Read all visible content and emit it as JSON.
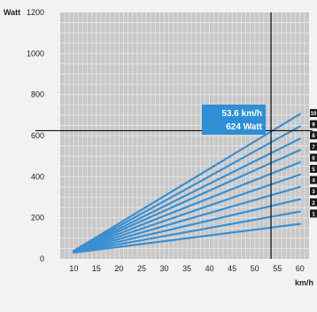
{
  "chart_data": {
    "type": "line",
    "title": "",
    "ylabel": "Watt",
    "xlabel": "km/h",
    "xlim": [
      7,
      62
    ],
    "ylim": [
      0,
      1200
    ],
    "x_ticks": [
      10,
      15,
      20,
      25,
      30,
      35,
      40,
      45,
      50,
      55,
      60
    ],
    "y_ticks": [
      0,
      200,
      400,
      600,
      800,
      1000,
      1200
    ],
    "grid": true,
    "series": [
      {
        "name": "1",
        "points": [
          [
            10,
            30
          ],
          [
            60,
            170
          ]
        ]
      },
      {
        "name": "2",
        "points": [
          [
            10,
            31
          ],
          [
            60,
            230
          ]
        ]
      },
      {
        "name": "3",
        "points": [
          [
            10,
            32
          ],
          [
            60,
            290
          ]
        ]
      },
      {
        "name": "4",
        "points": [
          [
            10,
            33
          ],
          [
            60,
            350
          ]
        ]
      },
      {
        "name": "5",
        "points": [
          [
            10,
            34
          ],
          [
            60,
            410
          ]
        ]
      },
      {
        "name": "6",
        "points": [
          [
            10,
            35
          ],
          [
            60,
            470
          ]
        ]
      },
      {
        "name": "7",
        "points": [
          [
            10,
            36
          ],
          [
            60,
            530
          ]
        ]
      },
      {
        "name": "8",
        "points": [
          [
            10,
            37
          ],
          [
            60,
            585
          ]
        ]
      },
      {
        "name": "9",
        "points": [
          [
            10,
            38
          ],
          [
            60,
            645
          ]
        ]
      },
      {
        "name": "10",
        "points": [
          [
            10,
            39
          ],
          [
            60,
            705
          ]
        ]
      }
    ],
    "crosshair": {
      "x": 53.6,
      "y": 624
    },
    "annotation": {
      "line1": "53.6 km/h",
      "line2": "624 Watt"
    },
    "colors": {
      "line": "#3a8fd0",
      "grid_bg": "#c8c8c8",
      "grid_line": "#e6e6e6",
      "crosshair": "#111111",
      "callout_bg": "#2f8fd6",
      "level_bg": "#1b1b1b"
    }
  }
}
